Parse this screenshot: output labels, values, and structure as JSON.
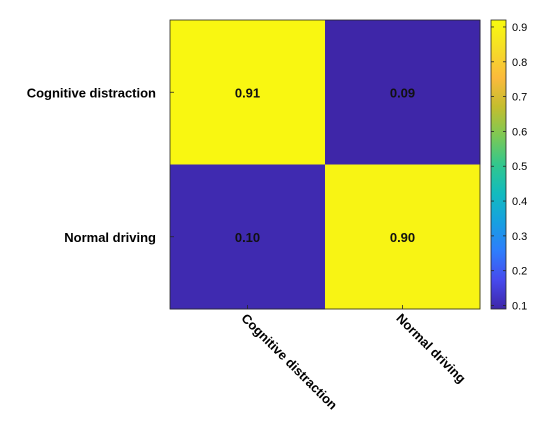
{
  "chart_data": {
    "type": "heatmap",
    "title": "",
    "xlabel": "",
    "ylabel": "",
    "row_labels": [
      "Cognitive distraction",
      "Normal driving"
    ],
    "col_labels": [
      "Cognitive distraction",
      "Normal driving"
    ],
    "values": [
      [
        0.91,
        0.09
      ],
      [
        0.1,
        0.9
      ]
    ],
    "cell_labels": [
      [
        "0.91",
        "0.09"
      ],
      [
        "0.10",
        "0.90"
      ]
    ],
    "colormap": "parula",
    "colorbar": {
      "range": [
        0.09,
        0.92
      ],
      "ticks": [
        0.1,
        0.2,
        0.3,
        0.4,
        0.5,
        0.6,
        0.7,
        0.8,
        0.9
      ],
      "tick_labels": [
        "0.1",
        "0.2",
        "0.3",
        "0.4",
        "0.5",
        "0.6",
        "0.7",
        "0.8",
        "0.9"
      ]
    },
    "grid": false
  },
  "colors": {
    "low": "#3e26a8",
    "high": "#f9fb0e",
    "axis": "#262626"
  }
}
